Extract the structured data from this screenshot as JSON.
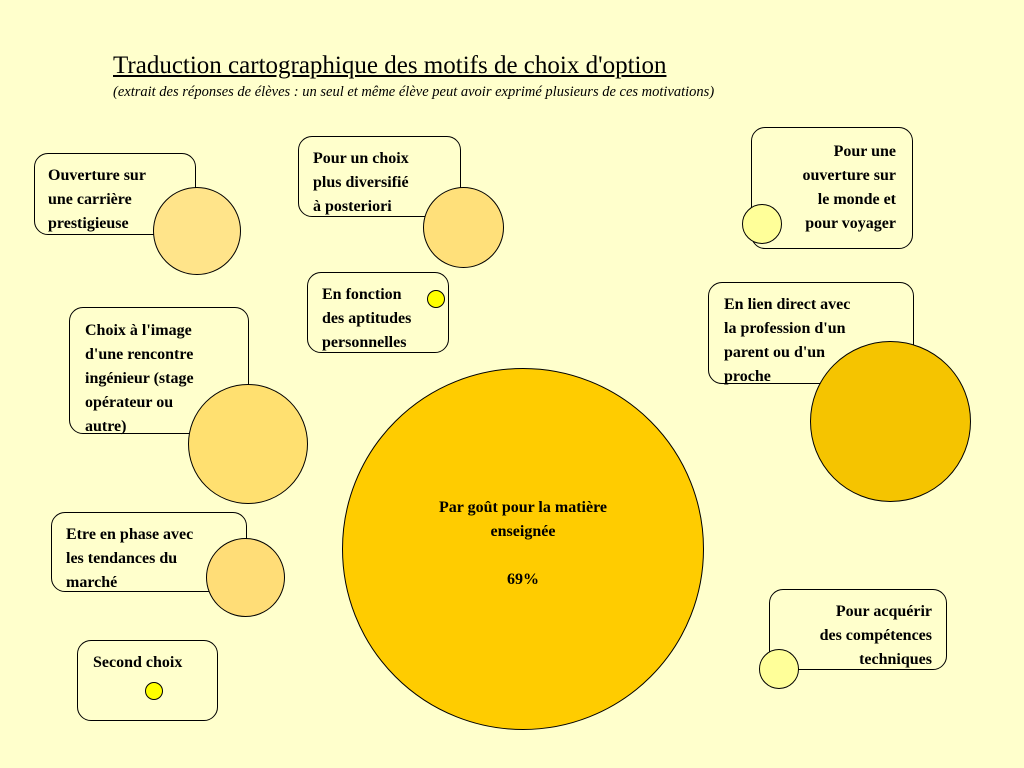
{
  "header": {
    "title": "Traduction cartographique des motifs de choix d'option",
    "subtitle": "(extrait des réponses de élèves : un seul et même élève peut avoir exprimé plusieurs de ces motivations)"
  },
  "motifs": [
    {
      "id": "carriere",
      "label": "Ouverture sur\nune carrière\nprestigieuse",
      "color": "#ffe48a"
    },
    {
      "id": "diversifie",
      "label": "Pour un choix\nplus diversifié\nà posteriori",
      "color": "#ffe07a"
    },
    {
      "id": "monde",
      "label": "Pour une\nouverture sur\nle monde et\npour voyager",
      "color": "#ffff99"
    },
    {
      "id": "aptitudes",
      "label": "En fonction\ndes aptitudes\npersonnelles",
      "color": "#ffff00"
    },
    {
      "id": "image",
      "label": "Choix à l'image\nd'une rencontre\ningénieur (stage\nopérateur ou\nautre)",
      "color": "#ffe070"
    },
    {
      "id": "parent",
      "label": "En lien direct avec\nla profession d'un\nparent ou d'un\nproche",
      "color": "#f5c400"
    },
    {
      "id": "gout",
      "label": "Par goût pour la matière\nenseignée",
      "value": "69%",
      "color": "#ffcc00"
    },
    {
      "id": "marche",
      "label": "Etre en phase avec\nles tendances du\nmarché",
      "color": "#ffdd77"
    },
    {
      "id": "competences",
      "label": "Pour acquérir\ndes compétences\ntechniques",
      "color": "#ffff99"
    },
    {
      "id": "second",
      "label": "Second choix",
      "color": "#ffff00"
    }
  ]
}
